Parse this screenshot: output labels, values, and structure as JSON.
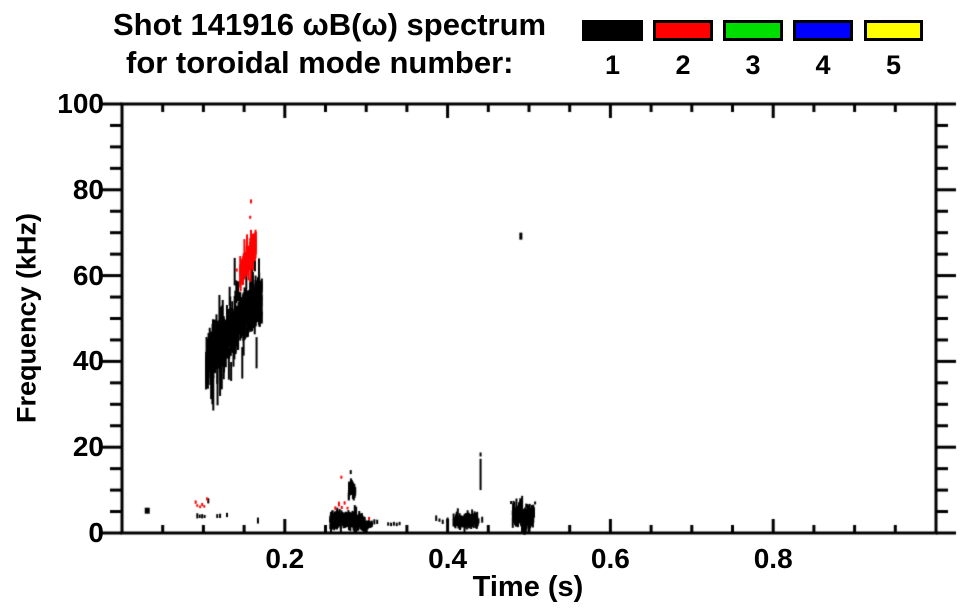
{
  "chart_data": {
    "type": "scatter",
    "title": "Shot 141916 ωB(ω) spectrum",
    "subtitle": "for toroidal mode number:",
    "xlabel": "Time (s)",
    "ylabel": "Frequency (kHz)",
    "xlim": [
      0,
      1.0
    ],
    "ylim": [
      0,
      100
    ],
    "x_major_ticks": [
      0.2,
      0.4,
      0.6,
      0.8
    ],
    "x_tick_labels": [
      "0.2",
      "0.4",
      "0.6",
      "0.8"
    ],
    "x_minor_step": 0.05,
    "y_major_ticks": [
      0,
      20,
      40,
      60,
      80,
      100
    ],
    "y_tick_labels": [
      "0",
      "20",
      "40",
      "60",
      "80",
      "100"
    ],
    "y_minor_step": 5,
    "grid": false,
    "frame_color": "#000000",
    "legend": {
      "position": "top-right",
      "items": [
        {
          "label": "1",
          "color": "#000000"
        },
        {
          "label": "2",
          "color": "#ff0000"
        },
        {
          "label": "3",
          "color": "#00dd00"
        },
        {
          "label": "4",
          "color": "#0000ff"
        },
        {
          "label": "5",
          "color": "#ffff00"
        }
      ]
    },
    "seed": 1234,
    "series": [
      {
        "name": "toroidal mode n=1",
        "color": "#000000",
        "features": [
          {
            "kind": "band",
            "centers": [
              [
                0.103,
                39.5
              ],
              [
                0.11,
                41.5
              ],
              [
                0.117,
                43.2
              ],
              [
                0.124,
                44.6
              ],
              [
                0.131,
                46.2
              ],
              [
                0.138,
                47.5
              ],
              [
                0.145,
                49.5
              ],
              [
                0.152,
                51.2
              ],
              [
                0.159,
                52.6
              ],
              [
                0.166,
                54.0
              ],
              [
                0.172,
                54.5
              ]
            ],
            "sigma": 2.1,
            "n": 900,
            "h": [
              0.8,
              4.0
            ],
            "w": 2,
            "long": {
              "n": 85,
              "h": [
                4,
                9
              ],
              "w": 2,
              "spread": 2.4
            }
          },
          {
            "kind": "band",
            "centers": [
              [
                0.2555,
                2.8
              ],
              [
                0.268,
                3.1
              ],
              [
                0.282,
                3.0
              ],
              [
                0.292,
                2.7
              ],
              [
                0.298,
                2.3
              ]
            ],
            "sigma": 0.75,
            "n": 430,
            "h": [
              0.5,
              2.0
            ],
            "w": 2,
            "long": {
              "n": 26,
              "h": [
                1.5,
                3.0
              ],
              "w": 2,
              "spread": 1.3
            }
          },
          {
            "kind": "band",
            "centers": [
              [
                0.297,
                2.0
              ],
              [
                0.307,
                2.0
              ]
            ],
            "sigma": 0.35,
            "n": 45,
            "h": [
              0.4,
              1.1
            ],
            "w": 2
          },
          {
            "kind": "band",
            "centers": [
              [
                0.2785,
                10.2
              ],
              [
                0.2825,
                10.8
              ],
              [
                0.2865,
                9.6
              ]
            ],
            "sigma": 0.7,
            "n": 45,
            "h": [
              0.7,
              2.2
            ],
            "w": 2
          },
          {
            "kind": "band",
            "centers": [
              [
                0.407,
                2.7
              ],
              [
                0.4125,
                3.1
              ],
              [
                0.418,
                2.5
              ],
              [
                0.4235,
                3.3
              ],
              [
                0.429,
                2.7
              ],
              [
                0.434,
                3.1
              ],
              [
                0.437,
                2.8
              ]
            ],
            "sigma": 0.7,
            "n": 170,
            "h": [
              0.5,
              1.9
            ],
            "w": 2,
            "long": {
              "n": 10,
              "h": [
                1.5,
                3.0
              ],
              "w": 2,
              "spread": 1.2
            }
          },
          {
            "kind": "band",
            "centers": [
              [
                0.48,
                5.2
              ],
              [
                0.4845,
                3.4
              ],
              [
                0.489,
                4.8
              ],
              [
                0.494,
                2.8
              ],
              [
                0.4985,
                4.3
              ],
              [
                0.503,
                3.4
              ],
              [
                0.506,
                5.0
              ]
            ],
            "sigma": 1.0,
            "n": 270,
            "h": [
              0.7,
              2.6
            ],
            "w": 2,
            "long": {
              "n": 12,
              "h": [
                2.0,
                3.5
              ],
              "w": 2,
              "spread": 1.3
            }
          },
          {
            "kind": "dash",
            "segs": [
              [
                0.0925,
                3.4,
                4.6
              ],
              [
                0.0955,
                3.5,
                4.3
              ],
              [
                0.0985,
                3.4,
                4.4
              ],
              [
                0.1015,
                3.5,
                4.2
              ],
              [
                0.106,
                6.9,
                8.1
              ],
              [
                0.117,
                3.5,
                4.4
              ],
              [
                0.1205,
                3.5,
                4.5
              ],
              [
                0.129,
                3.7,
                4.7
              ],
              [
                0.167,
                2.2,
                3.6
              ],
              [
                0.31,
                2.0,
                3.2
              ],
              [
                0.3135,
                2.1,
                3.1
              ],
              [
                0.327,
                1.7,
                2.5
              ],
              [
                0.3305,
                1.6,
                2.4
              ],
              [
                0.334,
                1.7,
                2.6
              ],
              [
                0.3375,
                1.6,
                2.4
              ],
              [
                0.341,
                1.8,
                2.6
              ],
              [
                0.386,
                2.8,
                4.1
              ],
              [
                0.39,
                2.6,
                3.4
              ],
              [
                0.394,
                2.1,
                3.1
              ],
              [
                0.4,
                2.4,
                3.6
              ],
              [
                0.438,
                2.2,
                3.4
              ],
              [
                0.4425,
                2.4,
                3.8
              ],
              [
                0.4405,
                10.0,
                17.3
              ]
            ]
          },
          {
            "kind": "dot",
            "pts": [
              [
                0.031,
                5.2,
                5,
                6
              ],
              [
                0.281,
                14.2,
                2,
                4
              ],
              [
                0.4405,
                18.3,
                2,
                4
              ],
              [
                0.478,
                7.1,
                2,
                3
              ],
              [
                0.5075,
                7.0,
                2,
                3
              ],
              [
                0.49,
                69.2,
                3,
                7
              ]
            ]
          }
        ]
      },
      {
        "name": "toroidal mode n=2",
        "color": "#ff0000",
        "features": [
          {
            "kind": "band",
            "centers": [
              [
                0.145,
                61.0
              ],
              [
                0.151,
                62.4
              ],
              [
                0.157,
                64.3
              ],
              [
                0.1645,
                67.6
              ]
            ],
            "sigma": 1.25,
            "n": 230,
            "h": [
              0.8,
              2.8
            ],
            "w": 2,
            "long": {
              "n": 16,
              "h": [
                2.5,
                5.0
              ],
              "w": 2,
              "spread": 1.8
            }
          },
          {
            "kind": "dash",
            "segs": [
              [
                0.1465,
                58.8,
                62.3
              ],
              [
                0.1485,
                60.0,
                63.0
              ],
              [
                0.0905,
                6.8,
                7.6
              ],
              [
                0.0925,
                6.1,
                6.7
              ],
              [
                0.096,
                5.8,
                6.4
              ],
              [
                0.0985,
                6.3,
                7.0
              ],
              [
                0.101,
                5.9,
                6.5
              ],
              [
                0.1045,
                7.6,
                8.3
              ],
              [
                0.262,
                5.4,
                6.2
              ],
              [
                0.2665,
                6.2,
                7.3
              ],
              [
                0.27,
                5.6,
                6.3
              ],
              [
                0.2735,
                6.6,
                7.4
              ],
              [
                0.277,
                5.5,
                6.1
              ]
            ]
          },
          {
            "kind": "dot",
            "pts": [
              [
                0.141,
                61.3,
                2,
                3
              ],
              [
                0.1585,
                77.3,
                2,
                4
              ],
              [
                0.1575,
                73.6,
                2,
                3
              ],
              [
                0.2695,
                13.0,
                2,
                3
              ],
              [
                0.3035,
                3.4,
                2,
                3
              ]
            ]
          }
        ]
      },
      {
        "name": "toroidal mode n=3",
        "color": "#00dd00",
        "features": []
      },
      {
        "name": "toroidal mode n=4",
        "color": "#0000ff",
        "features": []
      },
      {
        "name": "toroidal mode n=5",
        "color": "#ffff00",
        "features": []
      }
    ]
  }
}
